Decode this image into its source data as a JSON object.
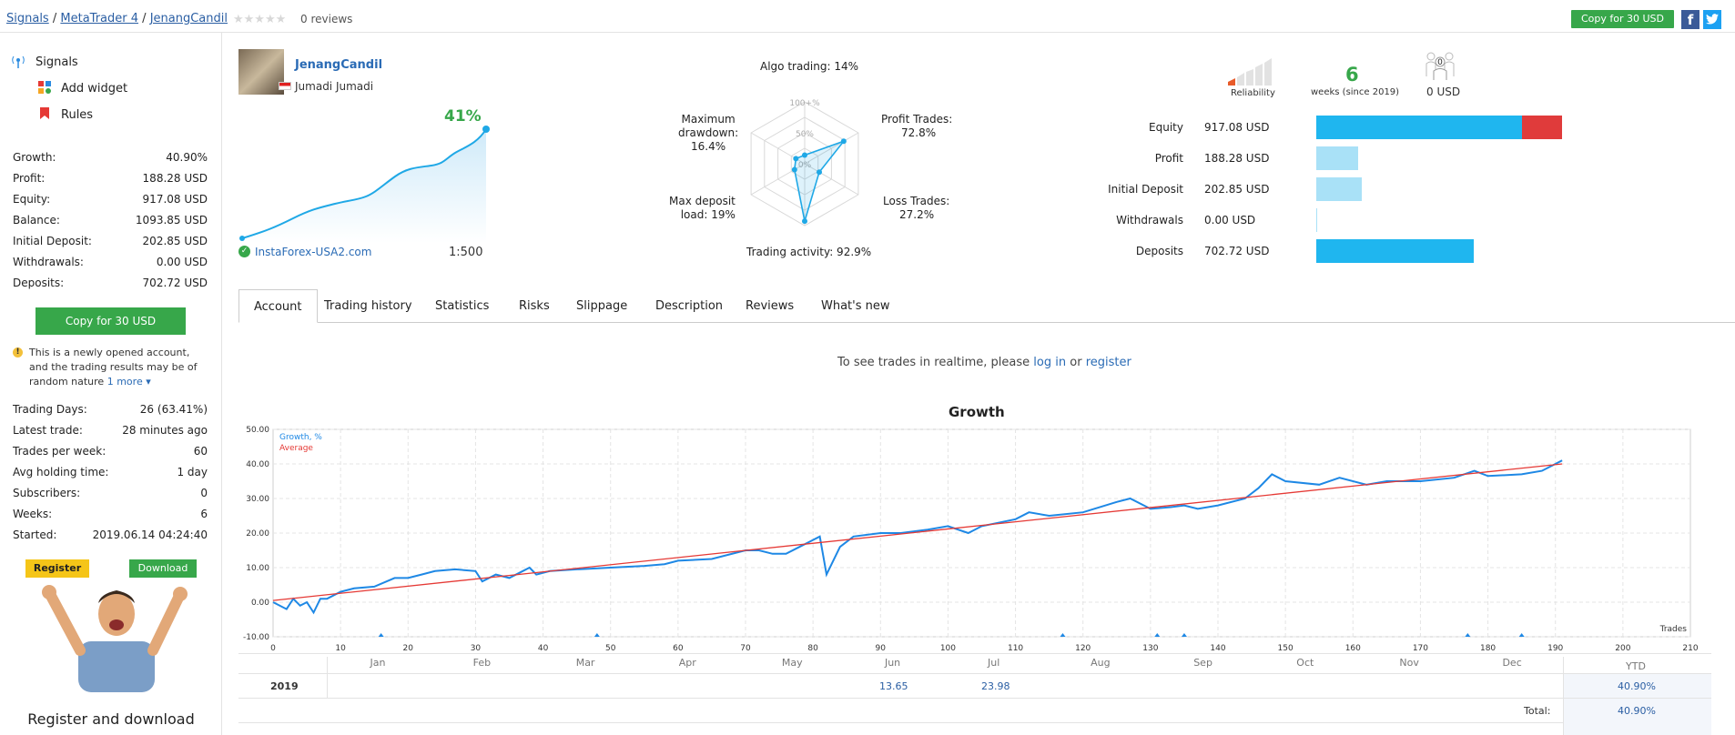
{
  "breadcrumb": {
    "items": [
      "Signals",
      "MetaTrader 4",
      "JenangCandil"
    ],
    "separator": "/"
  },
  "rating": {
    "stars": "★★★★★",
    "reviews": "0 reviews"
  },
  "top_actions": {
    "copy_label": "Copy for 30 USD",
    "facebook": "f",
    "twitter": "t"
  },
  "sidebar": {
    "links": [
      {
        "label": "Signals",
        "icon": "signal-antenna-icon"
      },
      {
        "label": "Add widget",
        "icon": "widget-icon"
      },
      {
        "label": "Rules",
        "icon": "bookmark-icon"
      }
    ],
    "stats": [
      {
        "k": "Growth:",
        "v": "40.90%"
      },
      {
        "k": "Profit:",
        "v": "188.28 USD"
      },
      {
        "k": "Equity:",
        "v": "917.08 USD"
      },
      {
        "k": "Balance:",
        "v": "1093.85 USD"
      },
      {
        "k": "Initial Deposit:",
        "v": "202.85 USD"
      },
      {
        "k": "Withdrawals:",
        "v": "0.00 USD"
      },
      {
        "k": "Deposits:",
        "v": "702.72 USD"
      }
    ],
    "copy_label": "Copy for 30 USD",
    "notice": "This is a newly opened account, and the trading results may be of random nature",
    "notice_more": "1 more ▾",
    "stats2": [
      {
        "k": "Trading Days:",
        "v": "26 (63.41%)"
      },
      {
        "k": "Latest trade:",
        "v": "28 minutes ago"
      },
      {
        "k": "Trades per week:",
        "v": "60"
      },
      {
        "k": "Avg holding time:",
        "v": "1 day"
      },
      {
        "k": "Subscribers:",
        "v": "0"
      },
      {
        "k": "Weeks:",
        "v": "6"
      },
      {
        "k": "Started:",
        "v": "2019.06.14 04:24:40"
      }
    ],
    "ad": {
      "register": "Register",
      "download": "Download",
      "caption": "Register and download"
    }
  },
  "profile": {
    "name": "JenangCandil",
    "real_name": "Jumadi Jumadi",
    "growth": "41%",
    "broker": "InstaForex-USA2.com",
    "leverage": "1:500"
  },
  "radar": {
    "algo": "Algo trading: 14%",
    "profit_trades": [
      "Profit Trades:",
      "72.8%"
    ],
    "loss_trades": [
      "Loss Trades:",
      "27.2%"
    ],
    "trading_activity": "Trading activity: 92.9%",
    "max_deposit_load": [
      "Max deposit",
      "load: 19%"
    ],
    "max_drawdown": [
      "Maximum",
      "drawdown:",
      "16.4%"
    ],
    "scale": [
      "100+%",
      "50%",
      "0%"
    ],
    "values": {
      "algo_trading": 14,
      "profit_trades": 72.8,
      "loss_trades": 27.2,
      "trading_activity": 92.9,
      "max_deposit_load": 19,
      "max_drawdown": 16.4
    }
  },
  "summary": {
    "reliability_label": "Reliability",
    "weeks": "6",
    "weeks_label": "weeks (since 2019)",
    "subscribers_count": "0",
    "subscribers_funds": "0 USD",
    "rows": [
      {
        "k": "Equity",
        "v": "917.08 USD"
      },
      {
        "k": "Profit",
        "v": "188.28 USD"
      },
      {
        "k": "Initial Deposit",
        "v": "202.85 USD"
      },
      {
        "k": "Withdrawals",
        "v": "0.00 USD"
      },
      {
        "k": "Deposits",
        "v": "702.72 USD"
      }
    ],
    "bar_values": {
      "equity_main": 917.08,
      "equity_extra": 176.77,
      "profit": 188.28,
      "initial_deposit": 202.85,
      "withdrawals": 0.0,
      "deposits": 702.72,
      "scale_max": 1093.85
    },
    "colors": {
      "dark": "#1fb6ef",
      "light": "#a9e1f7",
      "red": "#e03b3b"
    }
  },
  "tabs": [
    "Account",
    "Trading history",
    "Statistics",
    "Risks",
    "Slippage",
    "Description",
    "Reviews",
    "What's new"
  ],
  "realtime": {
    "prefix": "To see trades in realtime, please",
    "login": "log in",
    "or": "or",
    "register": "register"
  },
  "chart_data": {
    "type": "line",
    "title": "Growth",
    "xlabel": "Trades",
    "legend": [
      "Growth, %",
      "Average"
    ],
    "xlim": [
      0,
      210
    ],
    "ylim": [
      -10,
      50
    ],
    "x_ticks": [
      0,
      10,
      20,
      30,
      40,
      50,
      60,
      70,
      80,
      90,
      100,
      110,
      120,
      130,
      140,
      150,
      160,
      170,
      180,
      190,
      200,
      210
    ],
    "y_ticks": [
      "50.00",
      "40.00",
      "30.00",
      "20.00",
      "10.00",
      "0.00",
      "-10.00"
    ],
    "colors": {
      "growth": "#1e88e5",
      "average": "#e53935"
    },
    "series": [
      {
        "name": "Growth, %",
        "x": [
          0,
          2,
          3,
          4,
          5,
          6,
          7,
          8,
          10,
          12,
          15,
          18,
          20,
          22,
          24,
          27,
          30,
          31,
          33,
          35,
          37,
          38,
          39,
          41,
          45,
          50,
          55,
          58,
          60,
          65,
          70,
          72,
          74,
          76,
          78,
          80,
          81,
          82,
          84,
          86,
          90,
          93,
          97,
          100,
          103,
          105,
          110,
          112,
          115,
          120,
          125,
          127,
          130,
          133,
          135,
          137,
          140,
          144,
          146,
          148,
          150,
          155,
          158,
          162,
          165,
          170,
          175,
          178,
          180,
          185,
          188,
          190,
          191
        ],
        "y": [
          0,
          -2,
          1,
          -1,
          0,
          -3,
          1,
          1,
          3,
          4,
          4.5,
          7,
          7,
          8,
          9,
          9.5,
          9,
          6,
          8,
          7,
          9,
          10,
          8,
          9,
          9.5,
          10,
          10.5,
          11,
          12,
          12.5,
          15,
          15,
          14,
          14,
          16,
          18,
          19,
          8,
          16,
          19,
          20,
          20,
          21,
          22,
          20,
          22,
          24,
          26,
          25,
          26,
          29,
          30,
          27,
          27.5,
          28,
          27,
          28,
          30,
          33,
          37,
          35,
          34,
          36,
          34,
          35,
          35,
          36,
          38,
          36.5,
          37,
          38,
          40,
          41
        ]
      },
      {
        "name": "Average",
        "x": [
          0,
          191
        ],
        "y": [
          0.5,
          40
        ]
      }
    ]
  },
  "table": {
    "months": [
      "Jan",
      "Feb",
      "Mar",
      "Apr",
      "May",
      "Jun",
      "Jul",
      "Aug",
      "Sep",
      "Oct",
      "Nov",
      "Dec"
    ],
    "ytd_label": "YTD",
    "year": "2019",
    "values": {
      "Jun": "13.65",
      "Jul": "23.98"
    },
    "ytd": "40.90%",
    "total_label": "Total:",
    "total": "40.90%"
  }
}
